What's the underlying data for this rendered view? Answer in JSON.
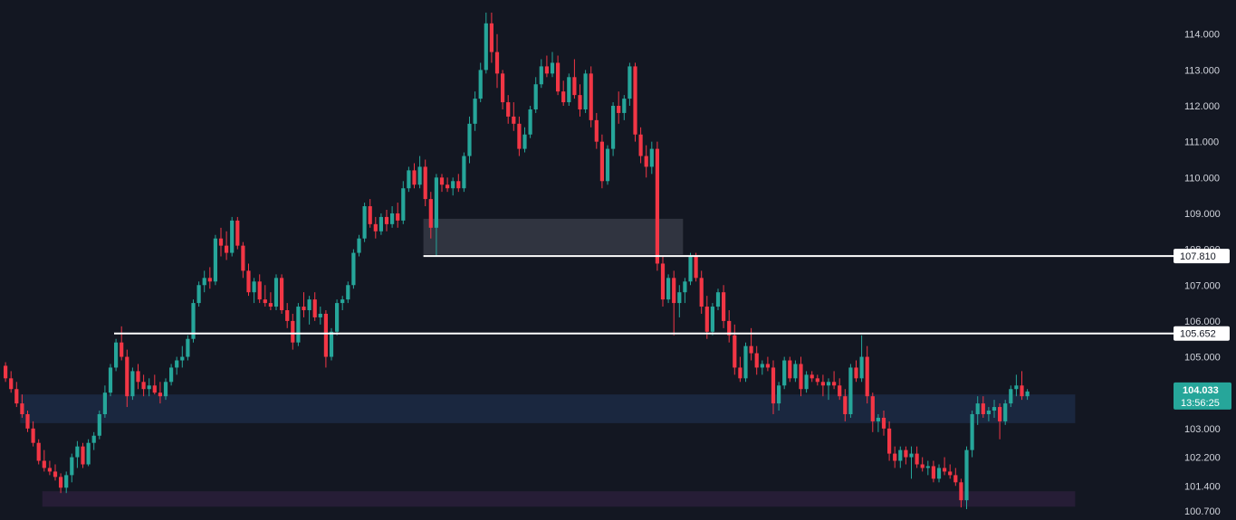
{
  "chart_data": {
    "type": "candlestick",
    "price_axis": {
      "ticks": [
        "114.000",
        "113.000",
        "112.000",
        "111.000",
        "110.000",
        "109.000",
        "108.000",
        "107.000",
        "106.000",
        "105.000",
        "103.000",
        "102.200",
        "101.400",
        "100.700"
      ],
      "ylim": [
        100.6,
        114.8
      ]
    },
    "colors": {
      "background": "#131722",
      "up": "#26a69a",
      "down": "#f23645",
      "axis_text": "#d1d4dc",
      "level_line": "#ffffff",
      "zone_supply": "#363a45",
      "zone_demand": "#1c2a44",
      "zone_low": "#2a1f3a"
    },
    "horizontal_levels": [
      {
        "price": 107.81,
        "label": "107.810",
        "start_bar": 76
      },
      {
        "price": 105.652,
        "label": "105.652",
        "start_bar": 20
      }
    ],
    "zones": [
      {
        "name": "supply-zone",
        "top": 108.85,
        "bottom": 107.85,
        "start_bar": 76,
        "end_bar": 123
      },
      {
        "name": "demand-zone",
        "top": 103.95,
        "bottom": 103.15,
        "start_bar": 3,
        "end_bar": 194
      },
      {
        "name": "low-zone",
        "top": 101.25,
        "bottom": 100.82,
        "start_bar": 7,
        "end_bar": 194
      }
    ],
    "current_price": {
      "value": 104.033,
      "label": "104.033",
      "countdown": "13:56:25"
    },
    "candles": [
      [
        104.75,
        104.85,
        104.3,
        104.4
      ],
      [
        104.4,
        104.6,
        104.0,
        104.1
      ],
      [
        104.1,
        104.3,
        103.6,
        103.7
      ],
      [
        103.7,
        103.95,
        103.3,
        103.4
      ],
      [
        103.4,
        103.5,
        102.9,
        103.0
      ],
      [
        103.0,
        103.2,
        102.5,
        102.6
      ],
      [
        102.6,
        102.7,
        102.0,
        102.1
      ],
      [
        102.1,
        102.4,
        101.8,
        101.9
      ],
      [
        101.9,
        102.1,
        101.7,
        101.8
      ],
      [
        101.8,
        102.0,
        101.55,
        101.65
      ],
      [
        101.65,
        101.75,
        101.2,
        101.35
      ],
      [
        101.35,
        101.8,
        101.2,
        101.7
      ],
      [
        101.7,
        102.3,
        101.5,
        102.2
      ],
      [
        102.2,
        102.65,
        101.9,
        102.5
      ],
      [
        102.5,
        102.6,
        101.9,
        102.0
      ],
      [
        102.0,
        102.7,
        101.95,
        102.6
      ],
      [
        102.6,
        102.9,
        102.4,
        102.8
      ],
      [
        102.8,
        103.5,
        102.7,
        103.4
      ],
      [
        103.4,
        104.2,
        103.3,
        104.0
      ],
      [
        104.0,
        104.8,
        103.9,
        104.7
      ],
      [
        104.7,
        105.5,
        104.6,
        105.4
      ],
      [
        105.4,
        105.85,
        104.9,
        105.0
      ],
      [
        105.0,
        105.2,
        103.6,
        103.9
      ],
      [
        103.9,
        104.7,
        103.8,
        104.6
      ],
      [
        104.6,
        104.8,
        104.1,
        104.3
      ],
      [
        104.3,
        104.5,
        103.9,
        104.1
      ],
      [
        104.1,
        104.4,
        103.9,
        104.2
      ],
      [
        104.2,
        104.5,
        103.95,
        104.0
      ],
      [
        104.0,
        104.3,
        103.7,
        103.9
      ],
      [
        103.9,
        104.4,
        103.8,
        104.3
      ],
      [
        104.3,
        104.8,
        104.2,
        104.7
      ],
      [
        104.7,
        105.0,
        104.5,
        104.9
      ],
      [
        104.9,
        105.3,
        104.7,
        105.0
      ],
      [
        105.0,
        105.6,
        104.9,
        105.5
      ],
      [
        105.5,
        106.6,
        105.4,
        106.5
      ],
      [
        106.5,
        107.1,
        106.4,
        107.0
      ],
      [
        107.0,
        107.4,
        106.8,
        107.2
      ],
      [
        107.2,
        107.5,
        106.9,
        107.1
      ],
      [
        107.1,
        108.4,
        107.0,
        108.3
      ],
      [
        108.3,
        108.6,
        107.8,
        108.1
      ],
      [
        108.1,
        108.5,
        107.7,
        107.9
      ],
      [
        107.9,
        108.9,
        107.8,
        108.8
      ],
      [
        108.8,
        108.9,
        108.0,
        108.1
      ],
      [
        108.1,
        108.2,
        107.2,
        107.4
      ],
      [
        107.4,
        107.6,
        106.7,
        106.8
      ],
      [
        106.8,
        107.2,
        106.5,
        107.1
      ],
      [
        107.1,
        107.3,
        106.5,
        106.6
      ],
      [
        106.6,
        107.0,
        106.4,
        106.5
      ],
      [
        106.5,
        106.8,
        106.3,
        106.4
      ],
      [
        106.4,
        107.3,
        106.3,
        107.2
      ],
      [
        107.2,
        107.3,
        106.2,
        106.3
      ],
      [
        106.3,
        106.5,
        105.8,
        106.0
      ],
      [
        106.0,
        106.2,
        105.2,
        105.4
      ],
      [
        105.4,
        106.5,
        105.3,
        106.4
      ],
      [
        106.4,
        106.8,
        106.1,
        106.3
      ],
      [
        106.3,
        106.7,
        105.9,
        106.6
      ],
      [
        106.6,
        106.8,
        106.0,
        106.1
      ],
      [
        106.1,
        106.4,
        105.9,
        106.2
      ],
      [
        106.2,
        106.3,
        104.7,
        105.0
      ],
      [
        105.0,
        105.8,
        104.9,
        105.7
      ],
      [
        105.7,
        106.6,
        105.6,
        106.5
      ],
      [
        106.5,
        106.7,
        106.3,
        106.6
      ],
      [
        106.6,
        107.1,
        106.5,
        107.0
      ],
      [
        107.0,
        108.0,
        106.9,
        107.9
      ],
      [
        107.9,
        108.4,
        107.8,
        108.3
      ],
      [
        108.3,
        109.3,
        108.2,
        109.2
      ],
      [
        109.2,
        109.4,
        108.6,
        108.7
      ],
      [
        108.7,
        108.9,
        108.3,
        108.5
      ],
      [
        108.5,
        109.0,
        108.4,
        108.9
      ],
      [
        108.9,
        109.1,
        108.5,
        108.7
      ],
      [
        108.7,
        109.2,
        108.6,
        109.0
      ],
      [
        109.0,
        109.3,
        108.6,
        108.8
      ],
      [
        108.8,
        109.9,
        108.7,
        109.7
      ],
      [
        109.7,
        110.3,
        109.6,
        110.2
      ],
      [
        110.2,
        110.4,
        109.7,
        109.8
      ],
      [
        109.8,
        110.6,
        109.7,
        110.3
      ],
      [
        110.3,
        110.5,
        109.2,
        109.4
      ],
      [
        109.4,
        109.6,
        108.3,
        108.6
      ],
      [
        108.6,
        110.1,
        107.8,
        110.0
      ],
      [
        110.0,
        110.1,
        109.6,
        109.8
      ],
      [
        109.8,
        110.0,
        109.6,
        109.7
      ],
      [
        109.7,
        110.0,
        109.5,
        109.9
      ],
      [
        109.9,
        110.1,
        109.6,
        109.7
      ],
      [
        109.7,
        110.7,
        109.6,
        110.6
      ],
      [
        110.6,
        111.7,
        110.4,
        111.5
      ],
      [
        111.5,
        112.4,
        111.3,
        112.2
      ],
      [
        112.2,
        113.2,
        112.1,
        113.0
      ],
      [
        113.0,
        114.6,
        112.9,
        114.3
      ],
      [
        114.3,
        114.6,
        113.2,
        113.5
      ],
      [
        113.5,
        114.0,
        112.5,
        112.9
      ],
      [
        112.9,
        113.0,
        111.9,
        112.1
      ],
      [
        112.1,
        112.3,
        111.5,
        111.7
      ],
      [
        111.7,
        112.1,
        111.3,
        111.5
      ],
      [
        111.5,
        111.7,
        110.6,
        110.8
      ],
      [
        110.8,
        111.4,
        110.7,
        111.2
      ],
      [
        111.2,
        112.0,
        111.1,
        111.9
      ],
      [
        111.9,
        112.8,
        111.8,
        112.6
      ],
      [
        112.6,
        113.3,
        112.5,
        113.1
      ],
      [
        113.1,
        113.4,
        112.8,
        112.9
      ],
      [
        112.9,
        113.5,
        112.8,
        113.2
      ],
      [
        113.2,
        113.4,
        112.3,
        112.4
      ],
      [
        112.4,
        112.7,
        112.0,
        112.1
      ],
      [
        112.1,
        112.9,
        112.0,
        112.8
      ],
      [
        112.8,
        113.3,
        112.2,
        112.3
      ],
      [
        112.3,
        112.6,
        111.7,
        111.9
      ],
      [
        111.9,
        113.0,
        111.8,
        112.9
      ],
      [
        112.9,
        113.1,
        111.4,
        111.6
      ],
      [
        111.6,
        111.8,
        110.8,
        111.0
      ],
      [
        111.0,
        111.2,
        109.7,
        109.9
      ],
      [
        109.9,
        110.9,
        109.8,
        110.8
      ],
      [
        110.8,
        112.1,
        110.6,
        112.0
      ],
      [
        112.0,
        112.4,
        111.5,
        111.8
      ],
      [
        111.8,
        112.3,
        111.6,
        112.2
      ],
      [
        112.2,
        113.2,
        112.0,
        113.1
      ],
      [
        113.1,
        113.2,
        111.0,
        111.2
      ],
      [
        111.2,
        111.4,
        110.4,
        110.6
      ],
      [
        110.6,
        110.9,
        110.0,
        110.3
      ],
      [
        110.3,
        111.0,
        110.1,
        110.8
      ],
      [
        110.8,
        111.0,
        107.4,
        107.6
      ],
      [
        107.6,
        107.8,
        106.4,
        106.6
      ],
      [
        106.6,
        107.3,
        106.5,
        107.2
      ],
      [
        107.2,
        107.4,
        105.6,
        106.5
      ],
      [
        106.5,
        107.0,
        106.1,
        106.8
      ],
      [
        106.8,
        107.2,
        106.5,
        107.1
      ],
      [
        107.1,
        107.9,
        107.0,
        107.8
      ],
      [
        107.8,
        107.9,
        107.1,
        107.2
      ],
      [
        107.2,
        107.4,
        106.2,
        106.4
      ],
      [
        106.4,
        106.7,
        105.5,
        105.7
      ],
      [
        105.7,
        106.5,
        105.6,
        106.4
      ],
      [
        106.4,
        106.9,
        106.3,
        106.8
      ],
      [
        106.8,
        107.0,
        105.8,
        106.0
      ],
      [
        106.0,
        106.3,
        105.4,
        105.6
      ],
      [
        105.6,
        105.9,
        104.5,
        104.7
      ],
      [
        104.7,
        105.0,
        104.3,
        104.4
      ],
      [
        104.4,
        105.4,
        104.3,
        105.3
      ],
      [
        105.3,
        105.8,
        104.9,
        105.1
      ],
      [
        105.1,
        105.3,
        104.5,
        104.7
      ],
      [
        104.7,
        104.9,
        104.5,
        104.8
      ],
      [
        104.8,
        105.0,
        104.6,
        104.7
      ],
      [
        104.7,
        104.9,
        103.4,
        103.7
      ],
      [
        103.7,
        104.3,
        103.5,
        104.2
      ],
      [
        104.2,
        105.0,
        104.1,
        104.9
      ],
      [
        104.9,
        105.0,
        104.3,
        104.4
      ],
      [
        104.4,
        104.9,
        104.3,
        104.8
      ],
      [
        104.8,
        105.0,
        103.9,
        104.1
      ],
      [
        104.1,
        104.6,
        104.0,
        104.5
      ],
      [
        104.5,
        104.6,
        104.3,
        104.4
      ],
      [
        104.4,
        104.5,
        104.2,
        104.3
      ],
      [
        104.3,
        104.5,
        103.9,
        104.2
      ],
      [
        104.2,
        104.4,
        103.8,
        104.3
      ],
      [
        104.3,
        104.6,
        104.1,
        104.2
      ],
      [
        104.2,
        104.4,
        103.8,
        103.9
      ],
      [
        103.9,
        104.1,
        103.2,
        103.4
      ],
      [
        103.4,
        104.8,
        103.3,
        104.7
      ],
      [
        104.7,
        104.9,
        104.3,
        104.4
      ],
      [
        104.4,
        105.6,
        104.3,
        105.0
      ],
      [
        105.0,
        105.3,
        103.7,
        103.9
      ],
      [
        103.9,
        104.0,
        102.9,
        103.2
      ],
      [
        103.2,
        103.4,
        102.9,
        103.3
      ],
      [
        103.3,
        103.5,
        102.8,
        103.0
      ],
      [
        103.0,
        103.2,
        102.1,
        102.3
      ],
      [
        102.3,
        102.5,
        101.9,
        102.1
      ],
      [
        102.1,
        102.5,
        101.9,
        102.4
      ],
      [
        102.4,
        102.5,
        102.0,
        102.2
      ],
      [
        102.2,
        102.5,
        101.6,
        102.3
      ],
      [
        102.3,
        102.5,
        101.9,
        102.0
      ],
      [
        102.0,
        102.2,
        101.8,
        101.9
      ],
      [
        101.9,
        102.1,
        101.7,
        101.95
      ],
      [
        101.95,
        102.1,
        101.5,
        101.6
      ],
      [
        101.6,
        102.0,
        101.5,
        101.9
      ],
      [
        101.9,
        102.2,
        101.7,
        101.8
      ],
      [
        101.8,
        102.0,
        101.6,
        101.7
      ],
      [
        101.7,
        101.9,
        101.4,
        101.5
      ],
      [
        101.5,
        101.6,
        100.8,
        101.0
      ],
      [
        101.0,
        102.5,
        100.75,
        102.4
      ],
      [
        102.4,
        103.5,
        102.2,
        103.4
      ],
      [
        103.4,
        103.9,
        103.1,
        103.7
      ],
      [
        103.7,
        103.9,
        103.3,
        103.4
      ],
      [
        103.4,
        103.6,
        103.2,
        103.5
      ],
      [
        103.5,
        103.8,
        103.3,
        103.6
      ],
      [
        103.6,
        103.7,
        102.7,
        103.2
      ],
      [
        103.2,
        103.8,
        103.1,
        103.7
      ],
      [
        103.7,
        104.2,
        103.6,
        104.1
      ],
      [
        104.1,
        104.5,
        103.9,
        104.2
      ],
      [
        104.2,
        104.6,
        103.8,
        103.9
      ],
      [
        103.9,
        104.1,
        103.8,
        104.033
      ]
    ]
  }
}
